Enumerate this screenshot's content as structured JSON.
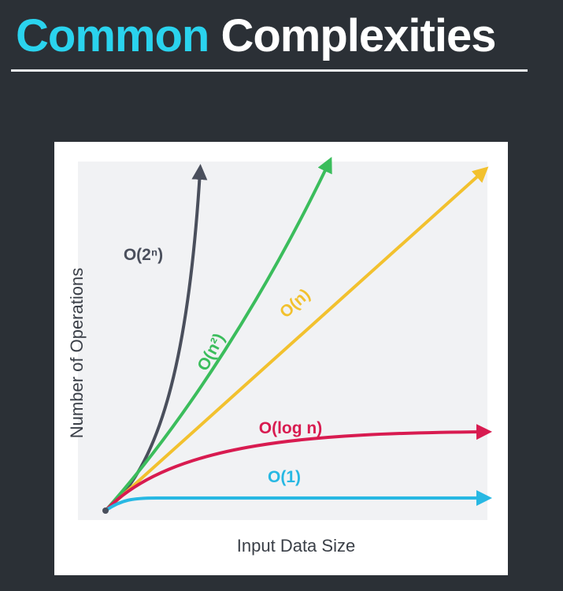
{
  "title": {
    "accent": "Common",
    "rest": "Complexities"
  },
  "colors": {
    "background": "#2b3036",
    "accent": "#2ad3ee",
    "plot_area": "#f1f2f4"
  },
  "chart_data": {
    "type": "line",
    "xlabel": "Input Data Size",
    "ylabel": "Number of Operations",
    "grid": false,
    "series": [
      {
        "name": "O(2ⁿ)",
        "color": "#4a4f5c",
        "growth": "exponential"
      },
      {
        "name": "O(n²)",
        "color": "#3bbd5c",
        "growth": "quadratic"
      },
      {
        "name": "O(n)",
        "color": "#f2c12e",
        "growth": "linear"
      },
      {
        "name": "O(log n)",
        "color": "#d81b50",
        "growth": "logarithmic"
      },
      {
        "name": "O(1)",
        "color": "#27b8e3",
        "growth": "constant"
      }
    ]
  }
}
